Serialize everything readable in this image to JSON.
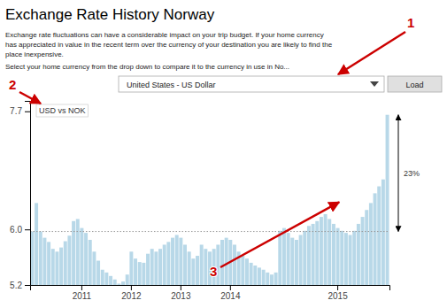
{
  "chart_data": {
    "type": "bar",
    "title": "Exchange Rate History Norway",
    "subtitle": [
      "Exchange rate fluctuations can have a considerable impact on your trip budget. If your home currency",
      "has appreciated in value in the recent term over the currency of your destination you are likely to find the",
      "place inexpensive."
    ],
    "select_text": "Select your home currency from the drop down to compare it to the currency in use in No...",
    "dropdown_text": "United States - US Dollar",
    "button_text": "Load",
    "chart_label": "USD vs NOK",
    "reference_line": 5.97,
    "range_annotation": {
      "label": "23%",
      "from": 5.97,
      "to": 7.65
    },
    "callouts": [
      "1",
      "2",
      "3"
    ],
    "color": "#b8d8e8",
    "grid": false,
    "ylim": [
      5.2,
      7.85
    ],
    "yticks": [
      5.2,
      {
        "value": 6.0,
        "label": "6.0"
      },
      7.7
    ],
    "categories": [
      null,
      null,
      null,
      null,
      null,
      null,
      null,
      null,
      null,
      null,
      null,
      null,
      "2011",
      null,
      null,
      null,
      null,
      null,
      null,
      null,
      null,
      null,
      null,
      null,
      "2012",
      null,
      null,
      null,
      null,
      null,
      null,
      null,
      null,
      null,
      null,
      null,
      "2013",
      null,
      null,
      null,
      null,
      null,
      null,
      null,
      null,
      null,
      null,
      null,
      "2014",
      null,
      null,
      null,
      null,
      null,
      null,
      null,
      null,
      null,
      null,
      null,
      null,
      null,
      null,
      null,
      null,
      null,
      null,
      null,
      null,
      null,
      null,
      null,
      null,
      null,
      "2015",
      null,
      null,
      null,
      null,
      null,
      null,
      null,
      null,
      null,
      null,
      null,
      null
    ],
    "values": [
      5.97,
      6.38,
      5.97,
      5.88,
      5.82,
      5.72,
      5.68,
      5.74,
      5.83,
      5.91,
      6.12,
      6.15,
      6.02,
      5.95,
      5.85,
      5.68,
      5.55,
      5.42,
      5.38,
      5.33,
      5.28,
      5.22,
      5.25,
      5.35,
      5.68,
      5.58,
      5.53,
      5.52,
      5.65,
      5.72,
      5.68,
      5.72,
      5.78,
      5.82,
      5.88,
      5.92,
      5.88,
      5.78,
      5.68,
      5.58,
      5.62,
      5.78,
      5.72,
      5.68,
      5.72,
      5.78,
      5.85,
      5.88,
      5.85,
      5.78,
      5.68,
      5.62,
      5.58,
      5.52,
      5.48,
      5.45,
      5.42,
      5.38,
      5.35,
      5.38,
      5.98,
      6.02,
      5.95,
      5.88,
      5.85,
      5.92,
      5.98,
      6.05,
      6.08,
      6.12,
      6.18,
      6.22,
      6.15,
      6.08,
      6.02,
      5.98,
      5.95,
      5.92,
      5.98,
      6.08,
      6.18,
      6.28,
      6.38,
      6.52,
      6.62,
      6.72,
      7.65
    ]
  }
}
